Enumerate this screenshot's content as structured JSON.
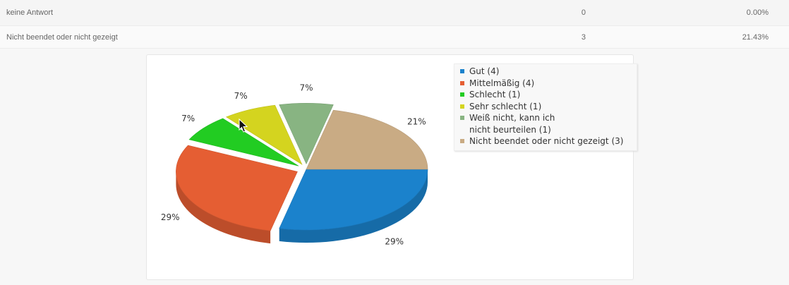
{
  "table": {
    "rows": [
      {
        "label": "keine Antwort",
        "count": "0",
        "percent": "0.00%"
      },
      {
        "label": "Nicht beendet oder nicht gezeigt",
        "count": "3",
        "percent": "21.43%"
      }
    ]
  },
  "chart_data": {
    "type": "pie",
    "categories": [
      "Gut",
      "Mittelmäßig",
      "Schlecht",
      "Sehr schlecht",
      "Weiß nicht, kann ich nicht beurteilen",
      "Nicht beendet oder nicht gezeigt"
    ],
    "values": [
      4,
      4,
      1,
      1,
      1,
      3
    ],
    "slice_labels": [
      "29%",
      "29%",
      "7%",
      "7%",
      "7%",
      "21%"
    ],
    "legend_entries": [
      "Gut (4)",
      "Mittelmäßig (4)",
      "Schlecht (1)",
      "Sehr schlecht (1)",
      "Weiß nicht, kann ich nicht beurteilen (1)",
      "Nicht beendet oder nicht gezeigt (3)"
    ],
    "colors": [
      "#1b82cc",
      "#e55e33",
      "#22cc22",
      "#d4d41f",
      "#88b482",
      "#c9ab84"
    ],
    "exploded": [
      false,
      true,
      true,
      true,
      true,
      false
    ],
    "legend_position": "top-right",
    "style": "3d"
  }
}
